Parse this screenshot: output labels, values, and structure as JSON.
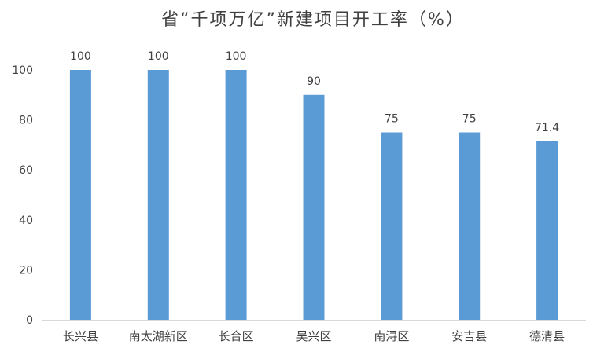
{
  "chart_data": {
    "type": "bar",
    "title": "省“千项万亿”新建项目开工率（%）",
    "xlabel": "",
    "ylabel": "",
    "categories": [
      "长兴县",
      "南太湖新区",
      "长合区",
      "吴兴区",
      "南浔区",
      "安吉县",
      "德清县"
    ],
    "values": [
      100,
      100,
      100,
      90,
      75,
      75,
      71.4
    ],
    "data_labels": [
      "100",
      "100",
      "100",
      "90",
      "75",
      "75",
      "71.4"
    ],
    "ylim": [
      0,
      100
    ],
    "yticks": [
      0,
      20,
      40,
      60,
      80,
      100
    ],
    "grid": false,
    "legend": "none",
    "bar_color": "#5b9bd5"
  }
}
